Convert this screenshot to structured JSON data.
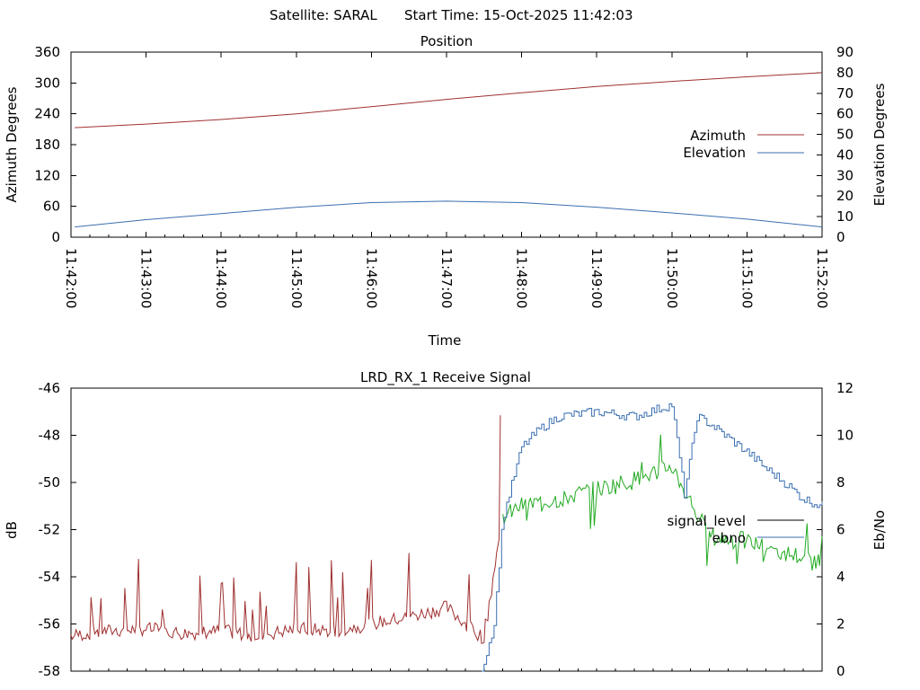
{
  "header": {
    "satellite": "Satellite: SARAL",
    "start_time": "Start Time: 15-Oct-2025 11:42:03"
  },
  "colors": {
    "azimuth": "#a03030",
    "elevation": "#3a6fb0",
    "signal_level_low": "#a03030",
    "signal_level_high": "#22aa22",
    "signal_level_legend": "#000000",
    "ebno": "#3a6fb0"
  },
  "chart_data": [
    {
      "type": "line",
      "title": "Position",
      "xlabel": "Time",
      "ylabel": "Azimuth Degrees",
      "y2label": "Elevation Degrees",
      "ylim": [
        0,
        360
      ],
      "y2lim": [
        0,
        90
      ],
      "yticks": [
        "360",
        "300",
        "240",
        "180",
        "120",
        "60",
        "0"
      ],
      "y2ticks": [
        "90",
        "80",
        "70",
        "60",
        "50",
        "40",
        "30",
        "20",
        "10",
        "0"
      ],
      "xticks": [
        "11:42:00",
        "11:43:00",
        "11:44:00",
        "11:45:00",
        "11:46:00",
        "11:47:00",
        "11:48:00",
        "11:49:00",
        "11:50:00",
        "11:51:00",
        "11:52:00"
      ],
      "legend": "right",
      "series": [
        {
          "name": "Azimuth",
          "axis": "left",
          "x": [
            "11:42:03",
            "11:43:00",
            "11:44:00",
            "11:45:00",
            "11:46:00",
            "11:47:00",
            "11:48:00",
            "11:49:00",
            "11:50:00",
            "11:51:00",
            "11:52:00"
          ],
          "y": [
            213,
            220,
            229,
            240,
            254,
            268,
            281,
            293,
            303,
            312,
            320
          ]
        },
        {
          "name": "Elevation",
          "axis": "right",
          "x": [
            "11:42:03",
            "11:43:00",
            "11:44:00",
            "11:45:00",
            "11:46:00",
            "11:47:00",
            "11:48:00",
            "11:49:00",
            "11:50:00",
            "11:51:00",
            "11:52:00"
          ],
          "y": [
            5,
            8.5,
            11.5,
            14.5,
            16.8,
            17.5,
            16.8,
            14.6,
            11.8,
            8.8,
            5
          ]
        }
      ]
    },
    {
      "type": "line",
      "title": "LRD_RX_1 Receive Signal",
      "ylabel": "dB",
      "y2label": "Eb/No",
      "ylim": [
        -58,
        -46
      ],
      "y2lim": [
        0,
        12
      ],
      "yticks": [
        "-46",
        "-48",
        "-50",
        "-52",
        "-54",
        "-56",
        "-58"
      ],
      "y2ticks": [
        "12",
        "10",
        "8",
        "6",
        "4",
        "2",
        "0"
      ],
      "xlim": [
        "11:42:00",
        "11:52:00"
      ],
      "legend": "right",
      "series": [
        {
          "name": "signal_level",
          "axis": "left",
          "x": [
            "11:42:00",
            "11:42:30",
            "11:43:00",
            "11:43:30",
            "11:44:00",
            "11:44:30",
            "11:45:00",
            "11:45:30",
            "11:46:00",
            "11:46:30",
            "11:47:00",
            "11:47:30",
            "11:47:45",
            "11:48:00",
            "11:48:30",
            "11:49:00",
            "11:49:30",
            "11:50:00",
            "11:50:30",
            "11:51:00",
            "11:51:30",
            "11:52:00"
          ],
          "y": [
            -56.5,
            -56.3,
            -56.2,
            -56.4,
            -56.3,
            -56.5,
            -56.2,
            -56.3,
            -56.0,
            -55.7,
            -55.3,
            -56.6,
            -51.5,
            -51.0,
            -50.7,
            -50.3,
            -49.9,
            -49.3,
            -52.3,
            -52.5,
            -53.0,
            -53.3
          ]
        },
        {
          "name": "ebno",
          "axis": "right",
          "x": [
            "11:47:28",
            "11:47:38",
            "11:47:45",
            "11:48:00",
            "11:48:15",
            "11:48:30",
            "11:49:00",
            "11:49:30",
            "11:50:00",
            "11:50:10",
            "11:50:20",
            "11:50:30",
            "11:51:00",
            "11:51:15",
            "11:51:30",
            "11:51:45",
            "11:52:00"
          ],
          "y": [
            0,
            2.0,
            6.5,
            9.5,
            10.3,
            10.8,
            11.0,
            10.8,
            11.3,
            7.5,
            10.8,
            10.5,
            9.3,
            8.6,
            8.0,
            7.3,
            7.0
          ]
        }
      ]
    }
  ]
}
